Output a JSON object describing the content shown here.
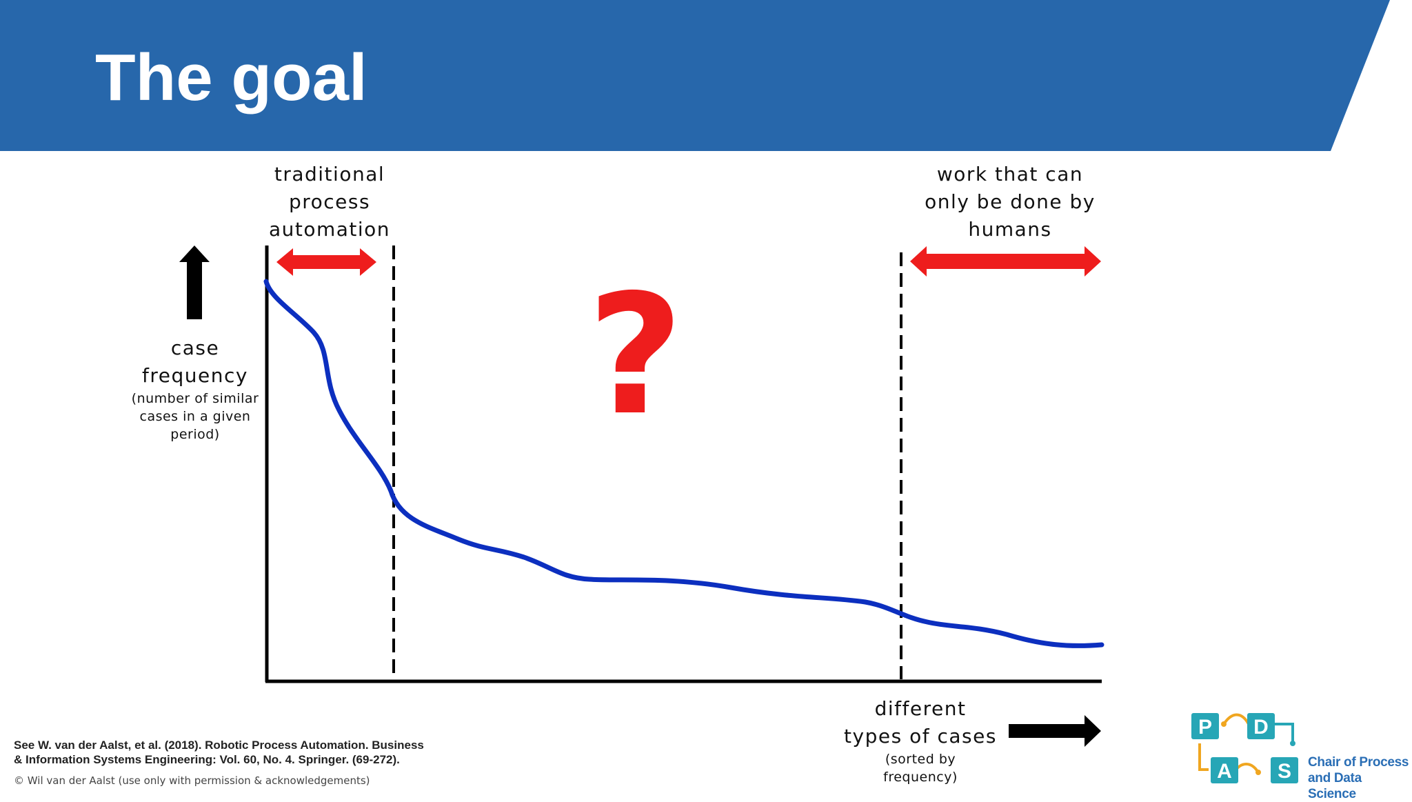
{
  "slide": {
    "title": "The goal",
    "colors": {
      "banner": "#2767ab",
      "curve": "#0c2fbf",
      "highlight_arrows": "#ee1d1d",
      "question_mark": "#ee1d1d",
      "axes": "#000000"
    }
  },
  "diagram": {
    "label_traditional": [
      "traditional",
      "process",
      "automation"
    ],
    "label_humans": [
      "work that can",
      "only be done by",
      "humans"
    ],
    "y_axis": {
      "title": [
        "case",
        "frequency"
      ],
      "note": [
        "(number of similar",
        "cases in a given",
        "period)"
      ]
    },
    "x_axis": {
      "title": [
        "different",
        "types of cases"
      ],
      "note": [
        "(sorted by",
        "frequency)"
      ]
    },
    "question_mark": "?",
    "icons": [
      "double-headed-arrow-icon",
      "up-arrow-icon",
      "right-arrow-icon"
    ]
  },
  "footer": {
    "reference_lines": [
      "See W. van der Aalst, et al. (2018). Robotic Process Automation. Business",
      "& Information Systems Engineering: Vol. 60, No. 4. Springer. (69-272)."
    ],
    "copyright": "© Wil van der Aalst (use only with permission & acknowledgements)"
  },
  "logo": {
    "letters": [
      "P",
      "D",
      "A",
      "S"
    ],
    "tagline_lines": [
      "Chair of Process",
      "and Data Science"
    ],
    "colors": {
      "tiles": "#27a6b6",
      "connectors": "#f0a620",
      "tagline": "#2a6eb5"
    }
  }
}
